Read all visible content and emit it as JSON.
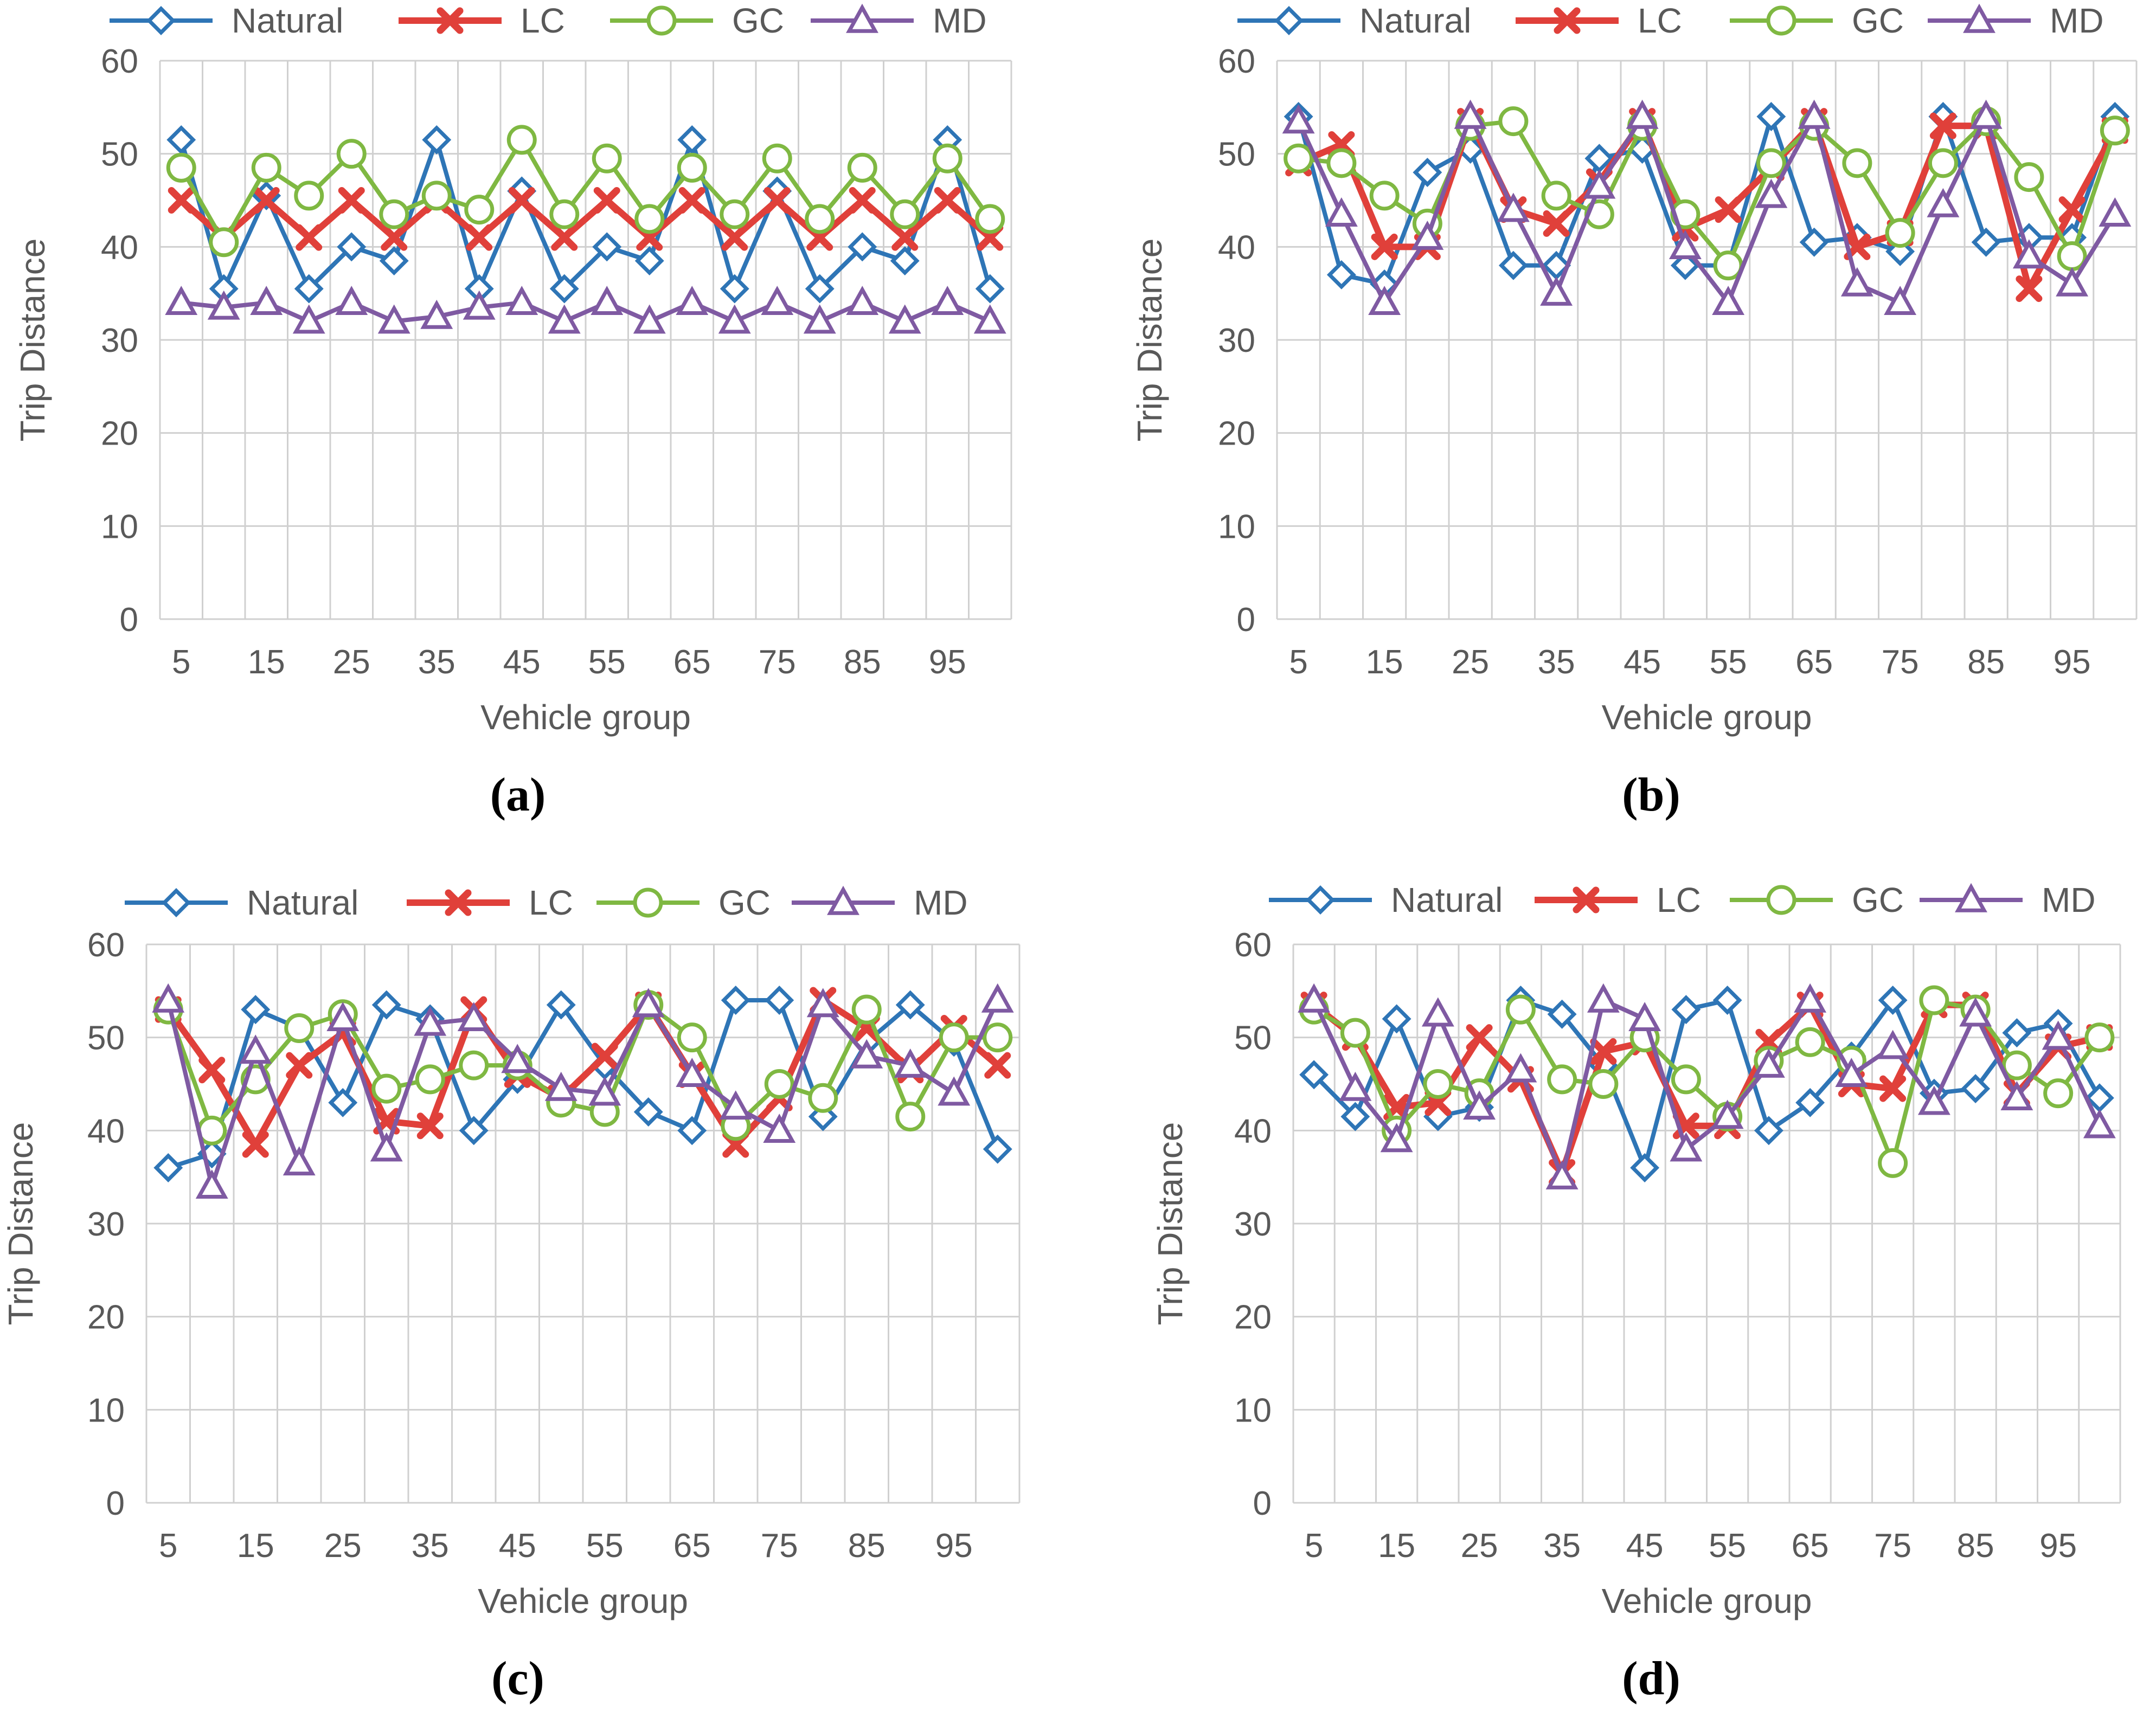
{
  "panels_legend": {
    "natural": "Natural",
    "lc": "LC",
    "gc": "GC",
    "md": "MD"
  },
  "colors": {
    "natural": "#2E75B6",
    "lc": "#E0403A",
    "gc": "#7FB842",
    "md": "#7F5AA2",
    "grid": "#D0D0D0",
    "axis_text": "#595959"
  },
  "chart_data": [
    {
      "id": "a",
      "type": "line",
      "panel_label": "(a)",
      "xlabel": "Vehicle group",
      "ylabel": "Trip Distance",
      "ylim": [
        0,
        60
      ],
      "yticks": [
        0,
        10,
        20,
        30,
        40,
        50,
        60
      ],
      "x": [
        5,
        10,
        15,
        20,
        25,
        30,
        35,
        40,
        45,
        50,
        55,
        60,
        65,
        70,
        75,
        80,
        85,
        90,
        95,
        100
      ],
      "xtick_labels": [
        "5",
        "15",
        "25",
        "35",
        "45",
        "55",
        "65",
        "75",
        "85",
        "95"
      ],
      "series": [
        {
          "key": "natural",
          "name": "Natural",
          "values": [
            51.5,
            35.5,
            45.5,
            35.5,
            40,
            38.5,
            51.5,
            35.5,
            46,
            35.5,
            40,
            38.5,
            51.5,
            35.5,
            46,
            35.5,
            40,
            38.5,
            51.5,
            35.5
          ]
        },
        {
          "key": "lc",
          "name": "LC",
          "values": [
            45,
            41,
            45,
            41,
            45,
            41,
            45,
            41,
            45,
            41,
            45,
            41,
            45,
            41,
            45,
            41,
            45,
            41,
            45,
            41
          ]
        },
        {
          "key": "gc",
          "name": "GC",
          "values": [
            48.5,
            40.5,
            48.5,
            45.5,
            50,
            43.5,
            45.5,
            44,
            51.5,
            43.5,
            49.5,
            43,
            48.5,
            43.5,
            49.5,
            43,
            48.5,
            43.5,
            49.5,
            43
          ]
        },
        {
          "key": "md",
          "name": "MD",
          "values": [
            34,
            33.5,
            34,
            32,
            34,
            32,
            32.5,
            33.5,
            34,
            32,
            34,
            32,
            34,
            32,
            34,
            32,
            34,
            32,
            34,
            32
          ]
        }
      ]
    },
    {
      "id": "b",
      "type": "line",
      "panel_label": "(b)",
      "xlabel": "Vehicle group",
      "ylabel": "Trip Distance",
      "ylim": [
        0,
        60
      ],
      "yticks": [
        0,
        10,
        20,
        30,
        40,
        50,
        60
      ],
      "x": [
        5,
        10,
        15,
        20,
        25,
        30,
        35,
        40,
        45,
        50,
        55,
        60,
        65,
        70,
        75,
        80,
        85,
        90,
        95,
        100
      ],
      "xtick_labels": [
        "5",
        "15",
        "25",
        "35",
        "45",
        "55",
        "65",
        "75",
        "85",
        "95"
      ],
      "series": [
        {
          "key": "natural",
          "name": "Natural",
          "values": [
            54,
            37,
            36,
            48,
            50.5,
            38,
            38,
            49.5,
            50.5,
            38,
            38,
            54,
            40.5,
            41,
            39.5,
            54,
            40.5,
            41,
            41,
            54
          ]
        },
        {
          "key": "lc",
          "name": "LC",
          "values": [
            49,
            51,
            40,
            40,
            53.5,
            44,
            42.5,
            47,
            53.5,
            42,
            44,
            48.5,
            53.5,
            40,
            41.5,
            53,
            53,
            35.5,
            44,
            52.5
          ]
        },
        {
          "key": "gc",
          "name": "GC",
          "values": [
            49.5,
            49,
            45.5,
            42.5,
            53,
            53.5,
            45.5,
            43.5,
            53,
            43.5,
            38,
            49,
            53,
            49,
            41.5,
            49,
            53.5,
            47.5,
            39,
            52.5
          ]
        },
        {
          "key": "md",
          "name": "MD",
          "values": [
            53.5,
            43.5,
            34,
            41,
            54,
            44,
            35,
            46.5,
            54,
            40,
            34,
            45.5,
            54,
            36,
            34,
            44.5,
            54,
            39,
            36,
            43.5
          ]
        }
      ]
    },
    {
      "id": "c",
      "type": "line",
      "panel_label": "(c)",
      "xlabel": "Vehicle group",
      "ylabel": "Trip Distance",
      "ylim": [
        0,
        60
      ],
      "yticks": [
        0,
        10,
        20,
        30,
        40,
        50,
        60
      ],
      "x": [
        5,
        10,
        15,
        20,
        25,
        30,
        35,
        40,
        45,
        50,
        55,
        60,
        65,
        70,
        75,
        80,
        85,
        90,
        95,
        100
      ],
      "xtick_labels": [
        "5",
        "15",
        "25",
        "35",
        "45",
        "55",
        "65",
        "75",
        "85",
        "95"
      ],
      "series": [
        {
          "key": "natural",
          "name": "Natural",
          "values": [
            36,
            37.5,
            53,
            51,
            43,
            53.5,
            52,
            40,
            45.5,
            53.5,
            47,
            42,
            40,
            54,
            54,
            41.5,
            49.5,
            53.5,
            49.5,
            38
          ]
        },
        {
          "key": "lc",
          "name": "LC",
          "values": [
            53,
            46.5,
            38.5,
            47,
            50.5,
            41,
            40.5,
            53,
            46,
            43.5,
            48,
            53.5,
            46,
            38.5,
            43.5,
            54,
            51,
            46.5,
            51,
            47
          ]
        },
        {
          "key": "gc",
          "name": "GC",
          "values": [
            53,
            40,
            45.5,
            51,
            52.5,
            44.5,
            45.5,
            47,
            47,
            43,
            42,
            53.5,
            50,
            40.5,
            45,
            43.5,
            53,
            41.5,
            50,
            50
          ]
        },
        {
          "key": "md",
          "name": "MD",
          "values": [
            54,
            34,
            48.5,
            36.5,
            52,
            38,
            51.5,
            52,
            47.5,
            44.5,
            44,
            53.5,
            46,
            42.5,
            40,
            53.5,
            48,
            47,
            44,
            54
          ]
        }
      ]
    },
    {
      "id": "d",
      "type": "line",
      "panel_label": "(d)",
      "xlabel": "Vehicle group",
      "ylabel": "Trip Distance",
      "ylim": [
        0,
        60
      ],
      "yticks": [
        0,
        10,
        20,
        30,
        40,
        50,
        60
      ],
      "x": [
        5,
        10,
        15,
        20,
        25,
        30,
        35,
        40,
        45,
        50,
        55,
        60,
        65,
        70,
        75,
        80,
        85,
        90,
        95,
        100
      ],
      "xtick_labels": [
        "5",
        "15",
        "25",
        "35",
        "45",
        "55",
        "65",
        "75",
        "85",
        "95"
      ],
      "series": [
        {
          "key": "natural",
          "name": "Natural",
          "values": [
            46,
            41.5,
            52,
            41.5,
            42.5,
            54,
            52.5,
            47,
            36,
            53,
            54,
            40,
            43,
            48,
            54,
            44,
            44.5,
            50.5,
            51.5,
            43.5
          ]
        },
        {
          "key": "lc",
          "name": "LC",
          "values": [
            53.5,
            50,
            42.5,
            43,
            50,
            45.5,
            35.5,
            48.5,
            49.5,
            40.5,
            40.5,
            49.5,
            53.5,
            45,
            44.5,
            53.5,
            53.5,
            44,
            49,
            50
          ]
        },
        {
          "key": "gc",
          "name": "GC",
          "values": [
            53,
            50.5,
            40,
            45,
            44,
            53,
            45.5,
            45,
            50,
            45.5,
            41.5,
            47.5,
            49.5,
            47.5,
            36.5,
            54,
            53,
            47,
            44,
            50
          ]
        },
        {
          "key": "md",
          "name": "MD",
          "values": [
            54,
            44.5,
            39,
            52.5,
            42.5,
            46.5,
            35,
            54,
            52,
            38,
            41.5,
            47,
            54,
            46,
            49,
            43,
            52.5,
            43.5,
            50,
            40.5
          ]
        }
      ]
    }
  ]
}
